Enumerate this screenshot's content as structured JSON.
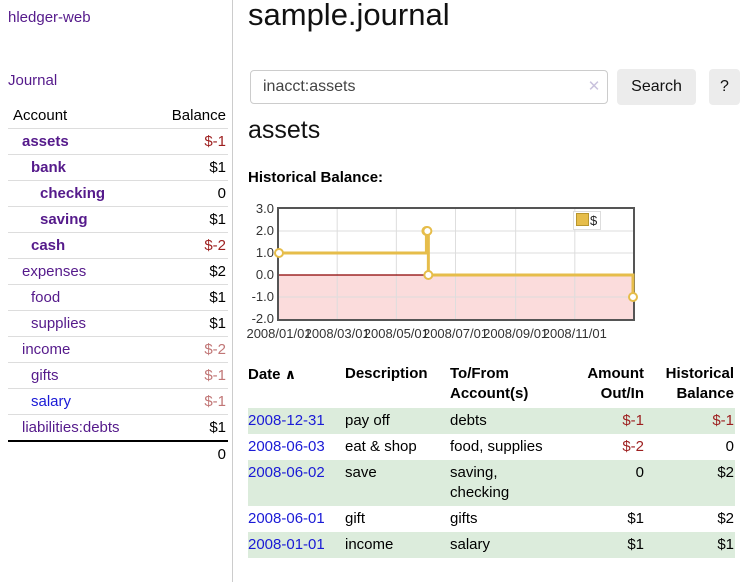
{
  "app_title": "hledger-web",
  "sidebar": {
    "journal_link": "Journal",
    "accounts_table": {
      "headers": {
        "account": "Account",
        "balance": "Balance"
      },
      "rows": [
        {
          "name": "assets",
          "balance": "$-1",
          "depth": 0,
          "bold": true,
          "name_color": "purple",
          "balance_color": "negative"
        },
        {
          "name": "bank",
          "balance": "$1",
          "depth": 1,
          "bold": true,
          "name_color": "purple",
          "balance_color": "normal"
        },
        {
          "name": "checking",
          "balance": "0",
          "depth": 2,
          "bold": true,
          "name_color": "purple",
          "balance_color": "normal"
        },
        {
          "name": "saving",
          "balance": "$1",
          "depth": 2,
          "bold": true,
          "name_color": "purple",
          "balance_color": "normal"
        },
        {
          "name": "cash",
          "balance": "$-2",
          "depth": 1,
          "bold": true,
          "name_color": "purple",
          "balance_color": "negative"
        },
        {
          "name": "expenses",
          "balance": "$2",
          "depth": 0,
          "bold": false,
          "name_color": "purple",
          "balance_color": "normal"
        },
        {
          "name": "food",
          "balance": "$1",
          "depth": 1,
          "bold": false,
          "name_color": "purple",
          "balance_color": "normal"
        },
        {
          "name": "supplies",
          "balance": "$1",
          "depth": 1,
          "bold": false,
          "name_color": "purple",
          "balance_color": "normal"
        },
        {
          "name": "income",
          "balance": "$-2",
          "depth": 0,
          "bold": false,
          "name_color": "purple",
          "balance_color": "negative-muted"
        },
        {
          "name": "gifts",
          "balance": "$-1",
          "depth": 1,
          "bold": false,
          "name_color": "purple",
          "balance_color": "negative-muted"
        },
        {
          "name": "salary",
          "balance": "$-1",
          "depth": 1,
          "bold": false,
          "name_color": "blue",
          "balance_color": "negative-muted"
        },
        {
          "name": "liabilities:debts",
          "balance": "$1",
          "depth": 0,
          "bold": false,
          "name_color": "purple",
          "balance_color": "normal"
        }
      ],
      "total": "0"
    }
  },
  "main": {
    "title": "sample.journal",
    "search": {
      "value": "inacct:assets",
      "clear_icon": "✕",
      "search_button": "Search",
      "help_button": "?"
    },
    "account_heading": "assets",
    "chart_label": "Historical Balance:",
    "register": {
      "headers": {
        "date": "Date",
        "sort_icon": "∧",
        "description": "Description",
        "accounts": "To/From Account(s)",
        "amount": "Amount Out/In",
        "balance": "Historical Balance"
      },
      "rows": [
        {
          "date": "2008-12-31",
          "description": "pay off",
          "accounts": "debts",
          "amount": "$-1",
          "amount_negative": true,
          "balance": "$-1",
          "balance_negative": true
        },
        {
          "date": "2008-06-03",
          "description": "eat & shop",
          "accounts": "food, supplies",
          "amount": "$-2",
          "amount_negative": true,
          "balance": "0",
          "balance_negative": false
        },
        {
          "date": "2008-06-02",
          "description": "save",
          "accounts": "saving, checking",
          "amount": "0",
          "amount_negative": false,
          "balance": "$2",
          "balance_negative": false
        },
        {
          "date": "2008-06-01",
          "description": "gift",
          "accounts": "gifts",
          "amount": "$1",
          "amount_negative": false,
          "balance": "$2",
          "balance_negative": false
        },
        {
          "date": "2008-01-01",
          "description": "income",
          "accounts": "salary",
          "amount": "$1",
          "amount_negative": false,
          "balance": "$1",
          "balance_negative": false
        }
      ]
    }
  },
  "chart_data": {
    "type": "line",
    "title": "Historical Balance",
    "step": true,
    "series": [
      {
        "name": "$",
        "x": [
          "2008-01-01",
          "2008-06-01",
          "2008-06-02",
          "2008-06-03",
          "2008-12-31"
        ],
        "values": [
          1,
          2,
          2,
          0,
          -1
        ]
      }
    ],
    "x_range": [
      "2008-01-01",
      "2008-12-31"
    ],
    "ylim": [
      -2.0,
      3.0
    ],
    "yticks": [
      3.0,
      2.0,
      1.0,
      0.0,
      -1.0,
      -2.0
    ],
    "ytick_labels": [
      "3.0",
      "2.0",
      "1.0",
      "0.0",
      "-1.0",
      "-2.0"
    ],
    "xtick_labels": [
      "2008/01/01",
      "2008/03/01",
      "2008/05/01",
      "2008/07/01",
      "2008/09/01",
      "2008/11/01"
    ],
    "legend": {
      "label": "$",
      "position": "top-right"
    },
    "grid": true,
    "negative_region_shaded": true,
    "zero_line": true
  },
  "colors": {
    "link_purple": "#551a8b",
    "link_blue": "#1a1ad6",
    "negative": "#9d1f1f",
    "negative_muted": "#c17676",
    "row_green": "#dcecdc",
    "chart_line": "#e6bd4a",
    "chart_marker_fill": "#ffffff",
    "chart_negative_fill": "#fbdcdc",
    "chart_zero_line": "#8b0000",
    "grid_line": "#dddddd"
  }
}
